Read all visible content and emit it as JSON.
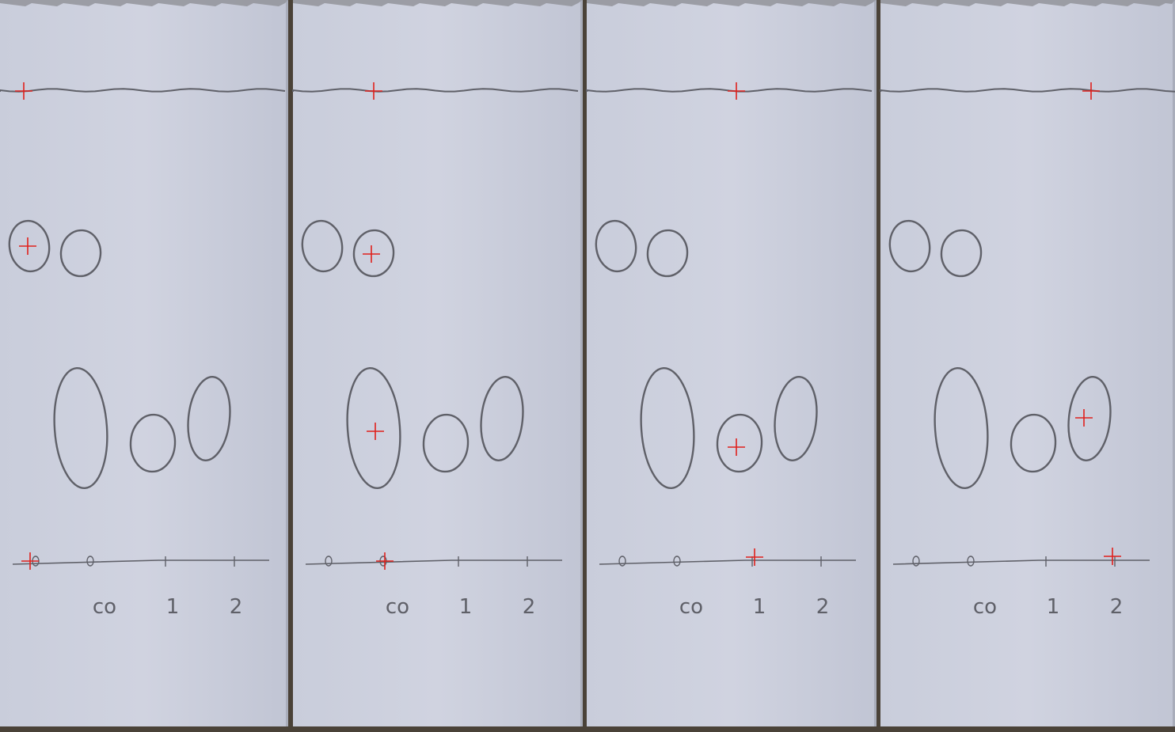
{
  "image": {
    "panel_count": 4,
    "plate_color": "#c5c9d8",
    "plate_edge_color": "#dfe2ea",
    "background_color": "#4a4238",
    "pencil_color": "#5f6068",
    "marker_color": "#e0201c",
    "baseline_labels": [
      {
        "name": "label-co",
        "text": "co"
      },
      {
        "name": "label-1",
        "text": "1"
      },
      {
        "name": "label-2",
        "text": "2"
      }
    ],
    "marker_icon": "red-crosshair-plus"
  }
}
